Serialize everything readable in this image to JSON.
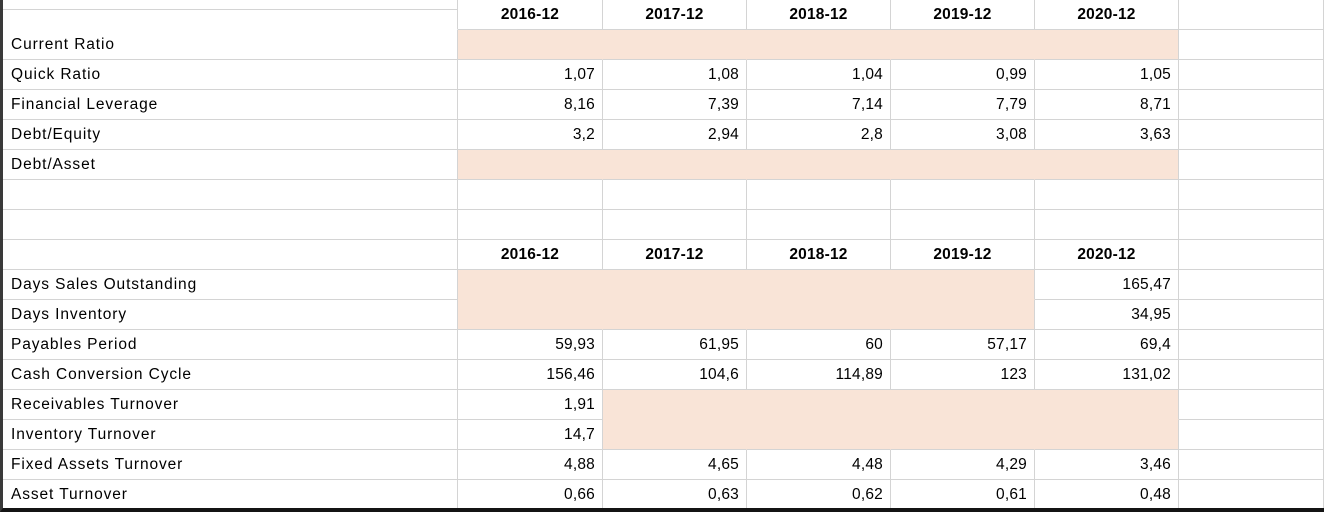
{
  "app": {
    "description": "Financial ratios spreadsheet"
  },
  "colors": {
    "highlight_fill": "#F9E4D7",
    "gridline": "#D4D4D4",
    "left_border": "#3A3A3A",
    "bottom_border": "#141414",
    "text": "#000000"
  },
  "spacer_rows_between_sections": 2,
  "sections": [
    {
      "columns": [
        "2016-12",
        "2017-12",
        "2018-12",
        "2019-12",
        "2020-12"
      ],
      "rows": [
        {
          "label": "Current Ratio",
          "values": [
            "",
            "",
            "",
            "",
            ""
          ],
          "highlighted_columns": [
            0,
            1,
            2,
            3,
            4
          ]
        },
        {
          "label": "Quick Ratio",
          "values": [
            "1,07",
            "1,08",
            "1,04",
            "0,99",
            "1,05"
          ],
          "highlighted_columns": []
        },
        {
          "label": "Financial Leverage",
          "values": [
            "8,16",
            "7,39",
            "7,14",
            "7,79",
            "8,71"
          ],
          "highlighted_columns": []
        },
        {
          "label": "Debt/Equity",
          "values": [
            "3,2",
            "2,94",
            "2,8",
            "3,08",
            "3,63"
          ],
          "highlighted_columns": []
        },
        {
          "label": "Debt/Asset",
          "values": [
            "",
            "",
            "",
            "",
            ""
          ],
          "highlighted_columns": [
            0,
            1,
            2,
            3,
            4
          ]
        }
      ]
    },
    {
      "columns": [
        "2016-12",
        "2017-12",
        "2018-12",
        "2019-12",
        "2020-12"
      ],
      "rows": [
        {
          "label": "Days Sales Outstanding",
          "values": [
            "",
            "",
            "",
            "",
            "165,47"
          ],
          "highlighted_columns": [
            0,
            1,
            2,
            3
          ]
        },
        {
          "label": "Days Inventory",
          "values": [
            "",
            "",
            "",
            "",
            "34,95"
          ],
          "highlighted_columns": [
            0,
            1,
            2,
            3
          ]
        },
        {
          "label": "Payables Period",
          "values": [
            "59,93",
            "61,95",
            "60",
            "57,17",
            "69,4"
          ],
          "highlighted_columns": []
        },
        {
          "label": "Cash Conversion Cycle",
          "values": [
            "156,46",
            "104,6",
            "114,89",
            "123",
            "131,02"
          ],
          "highlighted_columns": []
        },
        {
          "label": "Receivables Turnover",
          "values": [
            "1,91",
            "",
            "",
            "",
            ""
          ],
          "highlighted_columns": [
            1,
            2,
            3,
            4
          ]
        },
        {
          "label": "Inventory Turnover",
          "values": [
            "14,7",
            "",
            "",
            "",
            ""
          ],
          "highlighted_columns": [
            1,
            2,
            3,
            4
          ]
        },
        {
          "label": "Fixed Assets Turnover",
          "values": [
            "4,88",
            "4,65",
            "4,48",
            "4,29",
            "3,46"
          ],
          "highlighted_columns": []
        },
        {
          "label": "Asset Turnover",
          "values": [
            "0,66",
            "0,63",
            "0,62",
            "0,61",
            "0,48"
          ],
          "highlighted_columns": []
        }
      ]
    }
  ]
}
